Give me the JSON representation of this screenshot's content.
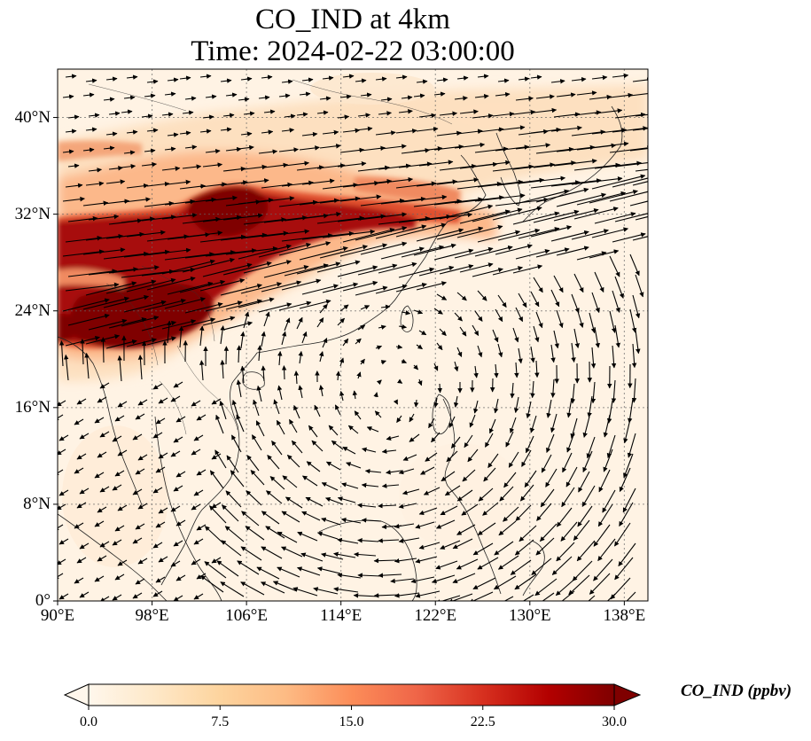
{
  "title": {
    "line1": "CO_IND at 4km",
    "line2": "Time: 2024-02-22 03:00:00"
  },
  "map": {
    "region": "East and Southeast Asia",
    "variable": "CO_IND",
    "level": "4km",
    "overlay": "wind vectors",
    "lon_range": [
      90,
      140
    ],
    "lat_range": [
      0,
      44
    ],
    "lat_ticks": [
      {
        "value": 0,
        "label": "0°"
      },
      {
        "value": 8,
        "label": "8°N"
      },
      {
        "value": 16,
        "label": "16°N"
      },
      {
        "value": 24,
        "label": "24°N"
      },
      {
        "value": 32,
        "label": "32°N"
      },
      {
        "value": 40,
        "label": "40°N"
      }
    ],
    "lon_ticks": [
      {
        "value": 90,
        "label": "90°E"
      },
      {
        "value": 98,
        "label": "98°E"
      },
      {
        "value": 106,
        "label": "106°E"
      },
      {
        "value": 114,
        "label": "114°E"
      },
      {
        "value": 122,
        "label": "122°E"
      },
      {
        "value": 130,
        "label": "130°E"
      },
      {
        "value": 138,
        "label": "138°E"
      }
    ],
    "gridlines": true
  },
  "colorbar": {
    "title": "CO_IND (ppbv)",
    "colormap": "OrRd",
    "range": [
      0,
      30
    ],
    "extend": "both",
    "ticks": [
      {
        "value": 0,
        "label": "0.0"
      },
      {
        "value": 7.5,
        "label": "7.5"
      },
      {
        "value": 15,
        "label": "15.0"
      },
      {
        "value": 22.5,
        "label": "22.5"
      },
      {
        "value": 30,
        "label": "30.0"
      }
    ],
    "colors": [
      "#fff7ec",
      "#fee8c8",
      "#fdd49e",
      "#fdbb84",
      "#fc8d59",
      "#ef6548",
      "#d7301f",
      "#b30000",
      "#7f0000"
    ]
  }
}
